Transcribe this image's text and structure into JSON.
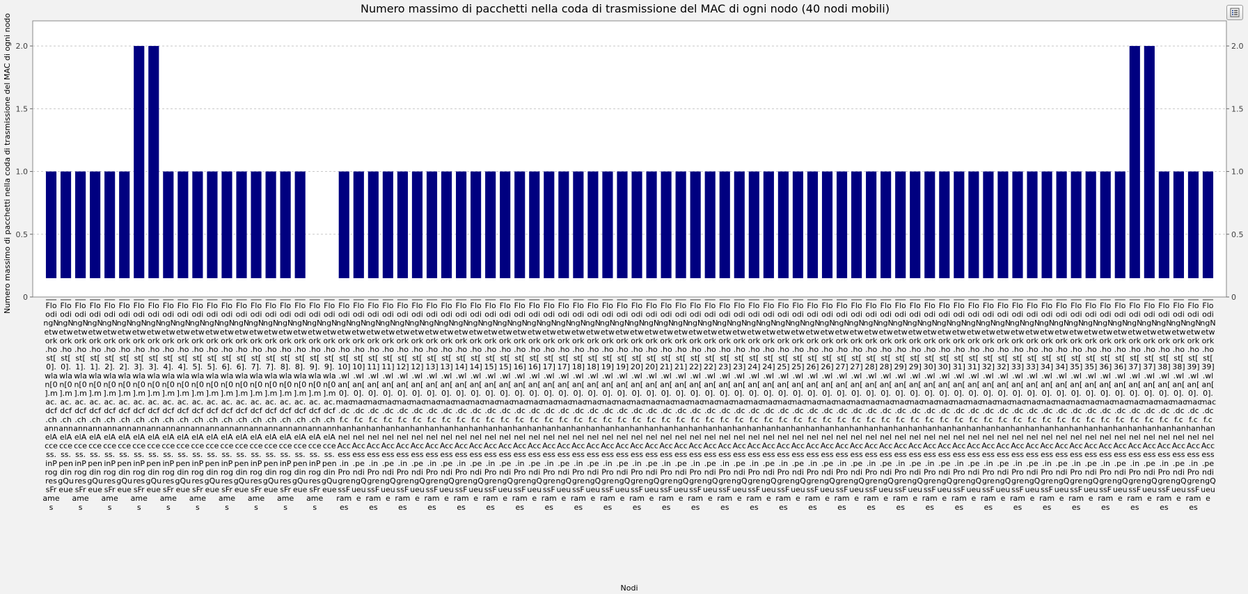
{
  "chart_data": {
    "type": "bar",
    "title": "Numero massimo di pacchetti nella coda di trasmissione del MAC di ogni nodo (40 nodi mobili)",
    "xlabel": "Nodi",
    "ylabel": "Numero massimo di pacchetti nella coda di trasmissione del MAC di ogni nodo",
    "ylim": [
      0,
      2.2
    ],
    "yticks": [
      "0",
      "0.5",
      "1.0",
      "1.5",
      "2.0"
    ],
    "grid": true,
    "color": "#000080",
    "categories": [
      "FloodingNetwork.host[0].wlan[0].mac.dcf.channelAccess.inProgressFrames",
      "FloodingNetwork.host[0].wlan[0].mac.dcf.channelAccess.pendingQueue",
      "FloodingNetwork.host[1].wlan[0].mac.dcf.channelAccess.inProgressFrames",
      "FloodingNetwork.host[1].wlan[0].mac.dcf.channelAccess.pendingQueue",
      "FloodingNetwork.host[2].wlan[0].mac.dcf.channelAccess.inProgressFrames",
      "FloodingNetwork.host[2].wlan[0].mac.dcf.channelAccess.pendingQueue",
      "FloodingNetwork.host[3].wlan[0].mac.dcf.channelAccess.inProgressFrames",
      "FloodingNetwork.host[3].wlan[0].mac.dcf.channelAccess.pendingQueue",
      "FloodingNetwork.host[4].wlan[0].mac.dcf.channelAccess.inProgressFrames",
      "FloodingNetwork.host[4].wlan[0].mac.dcf.channelAccess.pendingQueue",
      "FloodingNetwork.host[5].wlan[0].mac.dcf.channelAccess.inProgressFrames",
      "FloodingNetwork.host[5].wlan[0].mac.dcf.channelAccess.pendingQueue",
      "FloodingNetwork.host[6].wlan[0].mac.dcf.channelAccess.inProgressFrames",
      "FloodingNetwork.host[6].wlan[0].mac.dcf.channelAccess.pendingQueue",
      "FloodingNetwork.host[7].wlan[0].mac.dcf.channelAccess.inProgressFrames",
      "FloodingNetwork.host[7].wlan[0].mac.dcf.channelAccess.pendingQueue",
      "FloodingNetwork.host[8].wlan[0].mac.dcf.channelAccess.inProgressFrames",
      "FloodingNetwork.host[8].wlan[0].mac.dcf.channelAccess.pendingQueue",
      "FloodingNetwork.host[9].wlan[0].mac.dcf.channelAccess.inProgressFrames",
      "FloodingNetwork.host[9].wlan[0].mac.dcf.channelAccess.pendingQueue",
      "FloodingNetwork.host[10].wlan[0].mac.dcf.channelAccess.inProgressFrames",
      "FloodingNetwork.host[10].wlan[0].mac.dcf.channelAccess.pendingQueue",
      "FloodingNetwork.host[11].wlan[0].mac.dcf.channelAccess.inProgressFrames",
      "FloodingNetwork.host[11].wlan[0].mac.dcf.channelAccess.pendingQueue",
      "FloodingNetwork.host[12].wlan[0].mac.dcf.channelAccess.inProgressFrames",
      "FloodingNetwork.host[12].wlan[0].mac.dcf.channelAccess.pendingQueue",
      "FloodingNetwork.host[13].wlan[0].mac.dcf.channelAccess.inProgressFrames",
      "FloodingNetwork.host[13].wlan[0].mac.dcf.channelAccess.pendingQueue",
      "FloodingNetwork.host[14].wlan[0].mac.dcf.channelAccess.inProgressFrames",
      "FloodingNetwork.host[14].wlan[0].mac.dcf.channelAccess.pendingQueue",
      "FloodingNetwork.host[15].wlan[0].mac.dcf.channelAccess.inProgressFrames",
      "FloodingNetwork.host[15].wlan[0].mac.dcf.channelAccess.pendingQueue",
      "FloodingNetwork.host[16].wlan[0].mac.dcf.channelAccess.inProgressFrames",
      "FloodingNetwork.host[16].wlan[0].mac.dcf.channelAccess.pendingQueue",
      "FloodingNetwork.host[17].wlan[0].mac.dcf.channelAccess.inProgressFrames",
      "FloodingNetwork.host[17].wlan[0].mac.dcf.channelAccess.pendingQueue",
      "FloodingNetwork.host[18].wlan[0].mac.dcf.channelAccess.inProgressFrames",
      "FloodingNetwork.host[18].wlan[0].mac.dcf.channelAccess.pendingQueue",
      "FloodingNetwork.host[19].wlan[0].mac.dcf.channelAccess.inProgressFrames",
      "FloodingNetwork.host[19].wlan[0].mac.dcf.channelAccess.pendingQueue",
      "FloodingNetwork.host[20].wlan[0].mac.dcf.channelAccess.inProgressFrames",
      "FloodingNetwork.host[20].wlan[0].mac.dcf.channelAccess.pendingQueue",
      "FloodingNetwork.host[21].wlan[0].mac.dcf.channelAccess.inProgressFrames",
      "FloodingNetwork.host[21].wlan[0].mac.dcf.channelAccess.pendingQueue",
      "FloodingNetwork.host[22].wlan[0].mac.dcf.channelAccess.inProgressFrames",
      "FloodingNetwork.host[22].wlan[0].mac.dcf.channelAccess.pendingQueue",
      "FloodingNetwork.host[23].wlan[0].mac.dcf.channelAccess.inProgressFrames",
      "FloodingNetwork.host[23].wlan[0].mac.dcf.channelAccess.pendingQueue",
      "FloodingNetwork.host[24].wlan[0].mac.dcf.channelAccess.inProgressFrames",
      "FloodingNetwork.host[24].wlan[0].mac.dcf.channelAccess.pendingQueue",
      "FloodingNetwork.host[25].wlan[0].mac.dcf.channelAccess.inProgressFrames",
      "FloodingNetwork.host[25].wlan[0].mac.dcf.channelAccess.pendingQueue",
      "FloodingNetwork.host[26].wlan[0].mac.dcf.channelAccess.inProgressFrames",
      "FloodingNetwork.host[26].wlan[0].mac.dcf.channelAccess.pendingQueue",
      "FloodingNetwork.host[27].wlan[0].mac.dcf.channelAccess.inProgressFrames",
      "FloodingNetwork.host[27].wlan[0].mac.dcf.channelAccess.pendingQueue",
      "FloodingNetwork.host[28].wlan[0].mac.dcf.channelAccess.inProgressFrames",
      "FloodingNetwork.host[28].wlan[0].mac.dcf.channelAccess.pendingQueue",
      "FloodingNetwork.host[29].wlan[0].mac.dcf.channelAccess.inProgressFrames",
      "FloodingNetwork.host[29].wlan[0].mac.dcf.channelAccess.pendingQueue",
      "FloodingNetwork.host[30].wlan[0].mac.dcf.channelAccess.inProgressFrames",
      "FloodingNetwork.host[30].wlan[0].mac.dcf.channelAccess.pendingQueue",
      "FloodingNetwork.host[31].wlan[0].mac.dcf.channelAccess.inProgressFrames",
      "FloodingNetwork.host[31].wlan[0].mac.dcf.channelAccess.pendingQueue",
      "FloodingNetwork.host[32].wlan[0].mac.dcf.channelAccess.inProgressFrames",
      "FloodingNetwork.host[32].wlan[0].mac.dcf.channelAccess.pendingQueue",
      "FloodingNetwork.host[33].wlan[0].mac.dcf.channelAccess.inProgressFrames",
      "FloodingNetwork.host[33].wlan[0].mac.dcf.channelAccess.pendingQueue",
      "FloodingNetwork.host[34].wlan[0].mac.dcf.channelAccess.inProgressFrames",
      "FloodingNetwork.host[34].wlan[0].mac.dcf.channelAccess.pendingQueue",
      "FloodingNetwork.host[35].wlan[0].mac.dcf.channelAccess.inProgressFrames",
      "FloodingNetwork.host[35].wlan[0].mac.dcf.channelAccess.pendingQueue",
      "FloodingNetwork.host[36].wlan[0].mac.dcf.channelAccess.inProgressFrames",
      "FloodingNetwork.host[36].wlan[0].mac.dcf.channelAccess.pendingQueue",
      "FloodingNetwork.host[37].wlan[0].mac.dcf.channelAccess.inProgressFrames",
      "FloodingNetwork.host[37].wlan[0].mac.dcf.channelAccess.pendingQueue",
      "FloodingNetwork.host[38].wlan[0].mac.dcf.channelAccess.inProgressFrames",
      "FloodingNetwork.host[38].wlan[0].mac.dcf.channelAccess.pendingQueue",
      "FloodingNetwork.host[39].wlan[0].mac.dcf.channelAccess.inProgressFrames",
      "FloodingNetwork.host[39].wlan[0].mac.dcf.channelAccess.pendingQueue"
    ],
    "values": [
      1,
      1,
      1,
      1,
      1,
      1,
      2,
      2,
      1,
      1,
      1,
      1,
      1,
      1,
      1,
      1,
      1,
      1,
      null,
      null,
      1,
      1,
      1,
      1,
      1,
      1,
      1,
      1,
      1,
      1,
      1,
      1,
      1,
      1,
      1,
      1,
      1,
      1,
      1,
      1,
      1,
      1,
      1,
      1,
      1,
      1,
      1,
      1,
      1,
      1,
      1,
      1,
      1,
      1,
      1,
      1,
      1,
      1,
      1,
      1,
      1,
      1,
      1,
      1,
      1,
      1,
      1,
      1,
      1,
      1,
      1,
      1,
      1,
      1,
      2,
      2,
      1,
      1,
      1,
      1
    ]
  },
  "toolbar": {
    "legend_button_icon": "legend-list-icon"
  }
}
